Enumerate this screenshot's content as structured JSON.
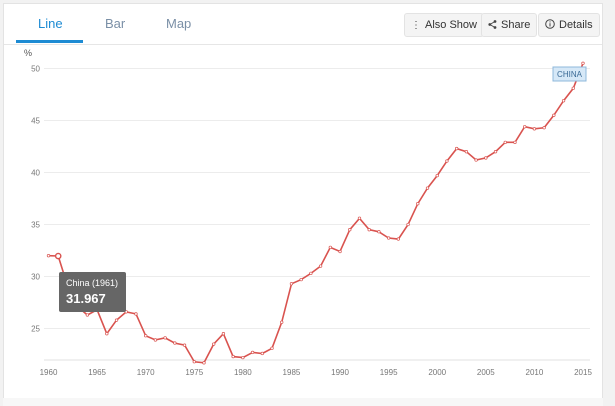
{
  "tabs": [
    {
      "label": "Line"
    },
    {
      "label": "Bar"
    },
    {
      "label": "Map"
    }
  ],
  "toolbar": {
    "also_show": "Also Show",
    "share": "Share",
    "details": "Details"
  },
  "tooltip": {
    "title": "China (1961)",
    "value": "31.967"
  },
  "colors": {
    "accent": "#1d8bd3",
    "series": "#d9534f",
    "tooltip_bg": "#666666"
  },
  "chart_data": {
    "type": "line",
    "ylabel": "%",
    "ylim": [
      22,
      51
    ],
    "xlim": [
      1960,
      2016
    ],
    "x_ticks": [
      1960,
      1965,
      1970,
      1975,
      1980,
      1985,
      1990,
      1995,
      2000,
      2005,
      2010,
      2015
    ],
    "y_ticks": [
      25,
      30,
      35,
      40,
      45,
      50
    ],
    "grid": "horizontal",
    "series": [
      {
        "name": "CHINA",
        "x": [
          1960,
          1961,
          1962,
          1963,
          1964,
          1965,
          1966,
          1967,
          1968,
          1969,
          1970,
          1971,
          1972,
          1973,
          1974,
          1975,
          1976,
          1977,
          1978,
          1979,
          1980,
          1981,
          1982,
          1983,
          1984,
          1985,
          1986,
          1987,
          1988,
          1989,
          1990,
          1991,
          1992,
          1993,
          1994,
          1995,
          1996,
          1997,
          1998,
          1999,
          2000,
          2001,
          2002,
          2003,
          2004,
          2005,
          2006,
          2007,
          2008,
          2009,
          2010,
          2011,
          2012,
          2013,
          2014,
          2015
        ],
        "values": [
          32.0,
          31.967,
          29.0,
          27.1,
          26.3,
          26.8,
          24.5,
          25.8,
          26.6,
          26.4,
          24.3,
          23.9,
          24.1,
          23.6,
          23.4,
          21.8,
          21.7,
          23.5,
          24.5,
          22.3,
          22.2,
          22.7,
          22.6,
          23.1,
          25.6,
          29.3,
          29.7,
          30.3,
          31.0,
          32.8,
          32.4,
          34.5,
          35.6,
          34.5,
          34.3,
          33.7,
          33.6,
          35.0,
          37.0,
          38.5,
          39.7,
          41.1,
          42.3,
          42.0,
          41.2,
          41.4,
          42.0,
          42.9,
          42.9,
          44.4,
          44.2,
          44.3,
          45.5,
          46.9,
          48.1,
          50.5
        ]
      }
    ],
    "series_label": "CHINA",
    "highlight": {
      "x": 1961,
      "value": 31.967
    }
  }
}
